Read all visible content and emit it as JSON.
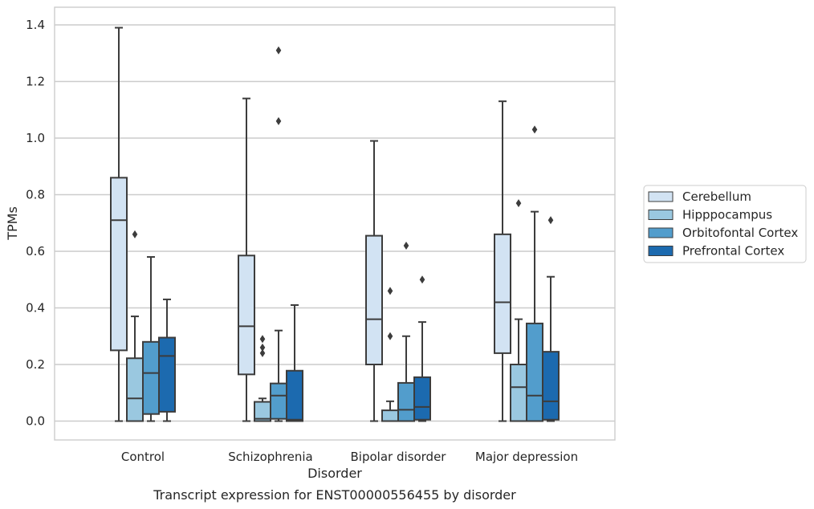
{
  "chart_data": {
    "type": "box",
    "xlabel": "Disorder",
    "ylabel": "TPMs",
    "caption": "Transcript expression for ENST00000556455 by disorder",
    "ylim": [
      -0.065,
      1.46
    ],
    "yticks": [
      "0.0",
      "0.2",
      "0.4",
      "0.6",
      "0.8",
      "1.0",
      "1.2",
      "1.4"
    ],
    "grid": "horizontal",
    "legend_position": "right",
    "categories": [
      "Control",
      "Schizophrenia",
      "Bipolar disorder",
      "Major depression"
    ],
    "series": [
      {
        "name": "Cerebellum",
        "color": "#d2e3f3",
        "boxes": [
          {
            "whislo": 0.0,
            "q1": 0.25,
            "med": 0.71,
            "q3": 0.86,
            "whishi": 1.39,
            "fliers": []
          },
          {
            "whislo": 0.0,
            "q1": 0.165,
            "med": 0.335,
            "q3": 0.585,
            "whishi": 1.14,
            "fliers": []
          },
          {
            "whislo": 0.0,
            "q1": 0.2,
            "med": 0.36,
            "q3": 0.655,
            "whishi": 0.99,
            "fliers": []
          },
          {
            "whislo": 0.0,
            "q1": 0.24,
            "med": 0.42,
            "q3": 0.66,
            "whishi": 1.13,
            "fliers": []
          }
        ]
      },
      {
        "name": "Hipppocampus",
        "color": "#9ac8e0",
        "boxes": [
          {
            "whislo": 0.0,
            "q1": 0.0,
            "med": 0.08,
            "q3": 0.222,
            "whishi": 0.37,
            "fliers": [
              0.66
            ]
          },
          {
            "whislo": 0.0,
            "q1": 0.0,
            "med": 0.008,
            "q3": 0.068,
            "whishi": 0.08,
            "fliers": [
              0.24,
              0.26,
              0.29
            ]
          },
          {
            "whislo": 0.0,
            "q1": 0.0,
            "med": 0.0,
            "q3": 0.038,
            "whishi": 0.07,
            "fliers": [
              0.3,
              0.46
            ]
          },
          {
            "whislo": 0.0,
            "q1": 0.0,
            "med": 0.12,
            "q3": 0.2,
            "whishi": 0.36,
            "fliers": [
              0.77
            ]
          }
        ]
      },
      {
        "name": "Orbitofontal Cortex",
        "color": "#529dcc",
        "boxes": [
          {
            "whislo": 0.0,
            "q1": 0.025,
            "med": 0.17,
            "q3": 0.28,
            "whishi": 0.58,
            "fliers": []
          },
          {
            "whislo": 0.0,
            "q1": 0.008,
            "med": 0.09,
            "q3": 0.133,
            "whishi": 0.32,
            "fliers": [
              1.06,
              1.31
            ]
          },
          {
            "whislo": 0.0,
            "q1": 0.0,
            "med": 0.04,
            "q3": 0.135,
            "whishi": 0.3,
            "fliers": [
              0.62
            ]
          },
          {
            "whislo": 0.0,
            "q1": 0.0,
            "med": 0.09,
            "q3": 0.345,
            "whishi": 0.74,
            "fliers": [
              1.03
            ]
          }
        ]
      },
      {
        "name": "Prefrontal Cortex",
        "color": "#1c6aaf",
        "boxes": [
          {
            "whislo": 0.0,
            "q1": 0.033,
            "med": 0.23,
            "q3": 0.295,
            "whishi": 0.43,
            "fliers": []
          },
          {
            "whislo": 0.0,
            "q1": 0.0,
            "med": 0.005,
            "q3": 0.178,
            "whishi": 0.41,
            "fliers": []
          },
          {
            "whislo": 0.0,
            "q1": 0.005,
            "med": 0.05,
            "q3": 0.155,
            "whishi": 0.35,
            "fliers": [
              0.5
            ]
          },
          {
            "whislo": 0.0,
            "q1": 0.005,
            "med": 0.07,
            "q3": 0.245,
            "whishi": 0.51,
            "fliers": [
              0.71
            ]
          }
        ]
      }
    ]
  }
}
